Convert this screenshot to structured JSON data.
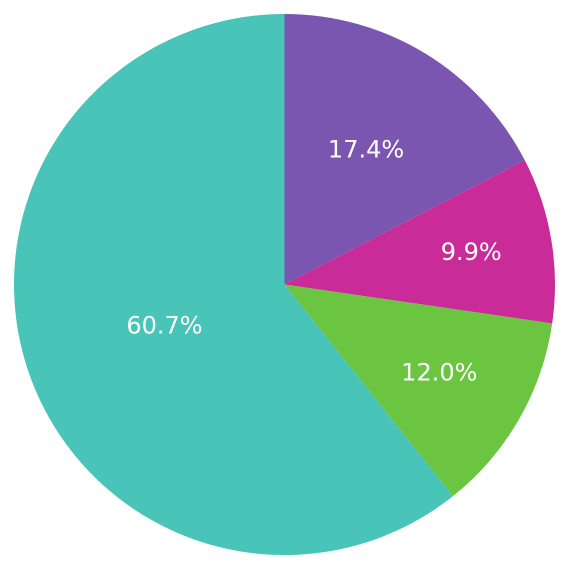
{
  "chart_data": {
    "type": "pie",
    "slices": [
      {
        "label": "17.4%",
        "value": 17.4,
        "color": "#7b56b0"
      },
      {
        "label": "9.9%",
        "value": 9.9,
        "color": "#c92c98"
      },
      {
        "label": "12.0%",
        "value": 12.0,
        "color": "#6cc540"
      },
      {
        "label": "60.7%",
        "value": 60.7,
        "color": "#48c4b8"
      }
    ],
    "start_angle": "12 o'clock",
    "direction": "clockwise",
    "legend": "none"
  }
}
